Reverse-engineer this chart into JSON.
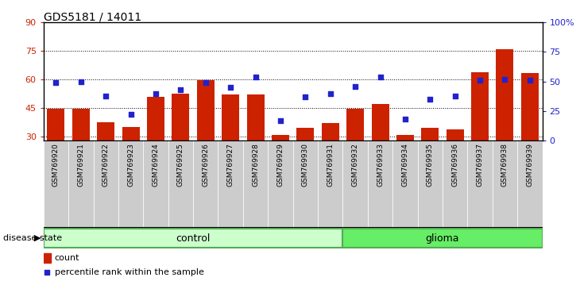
{
  "title": "GDS5181 / 14011",
  "samples": [
    "GSM769920",
    "GSM769921",
    "GSM769922",
    "GSM769923",
    "GSM769924",
    "GSM769925",
    "GSM769926",
    "GSM769927",
    "GSM769928",
    "GSM769929",
    "GSM769930",
    "GSM769931",
    "GSM769932",
    "GSM769933",
    "GSM769934",
    "GSM769935",
    "GSM769936",
    "GSM769937",
    "GSM769938",
    "GSM769939"
  ],
  "counts": [
    44.5,
    44.5,
    37.5,
    35.0,
    51.0,
    52.5,
    59.5,
    52.0,
    52.0,
    31.0,
    34.5,
    37.0,
    44.5,
    47.0,
    31.0,
    34.5,
    34.0,
    64.0,
    76.0,
    63.5
  ],
  "percentiles": [
    49,
    50,
    38,
    22,
    40,
    43,
    49,
    45,
    54,
    17,
    37,
    40,
    46,
    54,
    18,
    35,
    38,
    51,
    52,
    51
  ],
  "control_count": 12,
  "ylim_left": [
    28,
    90
  ],
  "ylim_right": [
    0,
    100
  ],
  "yticks_left": [
    30,
    45,
    60,
    75,
    90
  ],
  "yticks_right": [
    0,
    25,
    50,
    75,
    100
  ],
  "ytick_labels_right": [
    "0",
    "25",
    "50",
    "75",
    "100%"
  ],
  "bar_color": "#cc2200",
  "dot_color": "#2222cc",
  "control_fill": "#ccffcc",
  "glioma_fill": "#66ee66",
  "tick_bg": "#cccccc",
  "legend_count_label": "count",
  "legend_pct_label": "percentile rank within the sample",
  "disease_state_label": "disease state",
  "control_label": "control",
  "glioma_label": "glioma"
}
